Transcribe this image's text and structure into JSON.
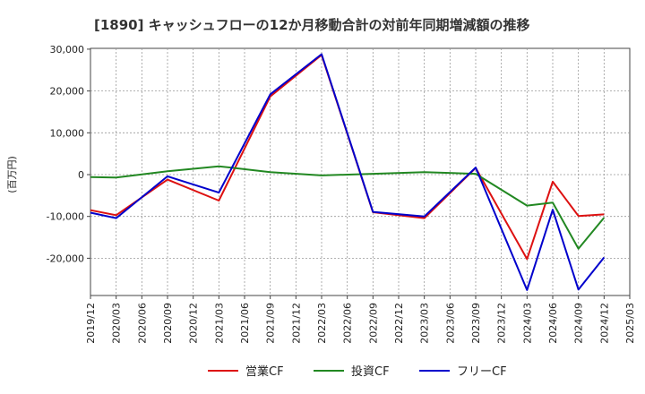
{
  "chart_data": {
    "type": "line",
    "title": "[1890]  キャッシュフローの12か月移動合計の対前年同期増減額の推移",
    "ylabel": "(百万円)",
    "xlabel": "",
    "ylim": [
      -29000,
      30000
    ],
    "yticks": [
      30000,
      20000,
      10000,
      0,
      -10000,
      -20000
    ],
    "ytick_labels": [
      "30,000",
      "20,000",
      "10,000",
      "0",
      "-10,000",
      "-20,000"
    ],
    "x_ticks": [
      "2019/12",
      "2020/03",
      "2020/06",
      "2020/09",
      "2020/12",
      "2021/03",
      "2021/06",
      "2021/09",
      "2021/12",
      "2022/03",
      "2022/06",
      "2022/09",
      "2022/12",
      "2023/03",
      "2023/06",
      "2023/09",
      "2023/12",
      "2024/03",
      "2024/06",
      "2024/09",
      "2024/12",
      "2025/03"
    ],
    "grid": true,
    "legend_position": "bottom",
    "series": [
      {
        "name": "営業CF",
        "color": "#dd1111",
        "values": [
          -8500,
          -9700,
          null,
          -1200,
          null,
          -6200,
          null,
          18700,
          null,
          28600,
          null,
          -9000,
          null,
          -10400,
          null,
          1600,
          null,
          -20200,
          -1700,
          -9900,
          -9500,
          null
        ]
      },
      {
        "name": "投資CF",
        "color": "#228822",
        "values": [
          -600,
          -700,
          null,
          800,
          null,
          2000,
          null,
          600,
          null,
          -200,
          null,
          200,
          null,
          600,
          null,
          200,
          null,
          -7400,
          -6700,
          -17700,
          -10300,
          null
        ]
      },
      {
        "name": "フリーCF",
        "color": "#0000cc",
        "values": [
          -9100,
          -10400,
          null,
          -400,
          null,
          -4300,
          null,
          19200,
          null,
          28800,
          null,
          -8900,
          null,
          -10000,
          null,
          1700,
          null,
          -27600,
          -8400,
          -27500,
          -19800,
          null
        ]
      }
    ]
  }
}
